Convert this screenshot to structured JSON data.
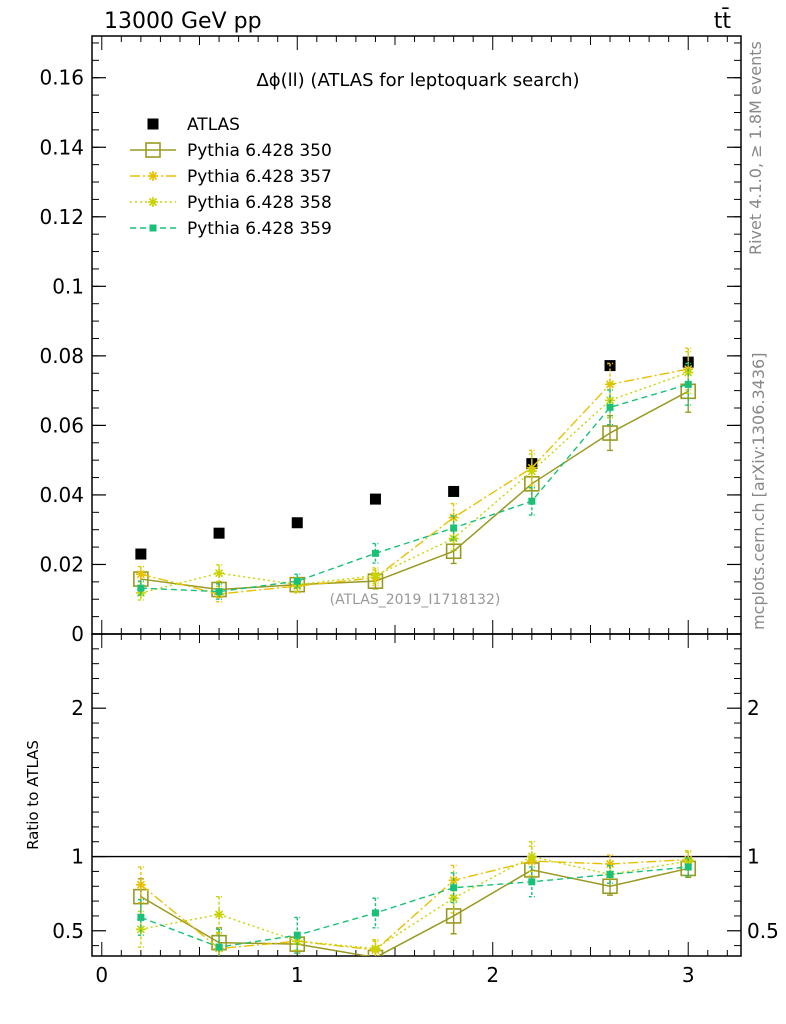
{
  "header": {
    "left": "13000 GeV pp",
    "right": "tt̄"
  },
  "side_text": {
    "rivet": "Rivet 4.1.0, ≥ 1.8M events",
    "mcplots": "mcplots.cern.ch [arXiv:1306.3436]"
  },
  "colors": {
    "atlas": "#000000",
    "p350": "#9a9a22",
    "p357": "#e8c000",
    "p358": "#c8d400",
    "p359": "#18c078"
  },
  "chart_data": [
    {
      "type": "scatter",
      "panel": "main",
      "title": "Δϕ(ll) (ATLAS for leptoquark search)",
      "watermark": "(ATLAS_2019_I1718132)",
      "xlim": [
        -0.05,
        3.27
      ],
      "ylim": [
        0,
        0.172
      ],
      "yticks": [
        0,
        0.02,
        0.04,
        0.06,
        0.08,
        0.1,
        0.12,
        0.14,
        0.16
      ],
      "ytick_labels": [
        "0",
        "0.02",
        "0.04",
        "0.06",
        "0.08",
        "0.1",
        "0.12",
        "0.14",
        "0.16"
      ],
      "x": [
        0.2,
        0.6,
        1.0,
        1.4,
        1.8,
        2.2,
        2.6,
        3.0
      ],
      "series": [
        {
          "name": "ATLAS",
          "style": "data",
          "values": [
            0.023,
            0.029,
            0.032,
            0.0388,
            0.041,
            0.049,
            0.0772,
            0.0782
          ],
          "errors": [
            0.0006,
            0.0006,
            0.0006,
            0.0007,
            0.0008,
            0.001,
            0.0012,
            0.0012
          ]
        },
        {
          "name": "Pythia 6.428 350",
          "style": "p350",
          "values": [
            0.0158,
            0.0128,
            0.0142,
            0.0152,
            0.0238,
            0.0432,
            0.0578,
            0.0698
          ],
          "errors": [
            0.002,
            0.0022,
            0.002,
            0.0022,
            0.0035,
            0.0045,
            0.005,
            0.006
          ]
        },
        {
          "name": "Pythia 6.428 357",
          "style": "p357",
          "values": [
            0.0172,
            0.0115,
            0.0138,
            0.0162,
            0.0335,
            0.0478,
            0.0718,
            0.0762
          ],
          "errors": [
            0.0022,
            0.0022,
            0.002,
            0.0022,
            0.004,
            0.005,
            0.006,
            0.006
          ]
        },
        {
          "name": "Pythia 6.428 358",
          "style": "p358",
          "values": [
            0.0118,
            0.0175,
            0.0142,
            0.0168,
            0.0275,
            0.0468,
            0.0672,
            0.0752
          ],
          "errors": [
            0.002,
            0.0024,
            0.002,
            0.0022,
            0.0035,
            0.005,
            0.005,
            0.006
          ]
        },
        {
          "name": "Pythia 6.428 359",
          "style": "p359",
          "values": [
            0.0132,
            0.0122,
            0.0152,
            0.0232,
            0.0305,
            0.0382,
            0.0652,
            0.0718
          ],
          "errors": [
            0.002,
            0.0022,
            0.002,
            0.0028,
            0.0035,
            0.004,
            0.005,
            0.006
          ]
        }
      ]
    },
    {
      "type": "line",
      "panel": "ratio",
      "ylabel": "Ratio to ATLAS",
      "xlim": [
        -0.05,
        3.27
      ],
      "ylim": [
        0.33,
        2.5
      ],
      "yticks": [
        0.5,
        1,
        2
      ],
      "ytick_labels": [
        "0.5",
        "1",
        "2"
      ],
      "xticks": [
        0,
        1,
        2,
        3
      ],
      "xtick_labels": [
        "0",
        "1",
        "2",
        "3"
      ],
      "x": [
        0.2,
        0.6,
        1.0,
        1.4,
        1.8,
        2.2,
        2.6,
        3.0
      ],
      "series": [
        {
          "name": "Pythia 6.428 350",
          "style": "p350",
          "values": [
            0.73,
            0.42,
            0.41,
            0.32,
            0.6,
            0.91,
            0.8,
            0.92
          ],
          "errors": [
            0.12,
            0.1,
            0.06,
            0.06,
            0.12,
            0.08,
            0.06,
            0.06
          ]
        },
        {
          "name": "Pythia 6.428 357",
          "style": "p357",
          "values": [
            0.81,
            0.38,
            0.43,
            0.37,
            0.84,
            0.97,
            0.95,
            0.98
          ],
          "errors": [
            0.12,
            0.1,
            0.06,
            0.06,
            0.1,
            0.1,
            0.06,
            0.06
          ]
        },
        {
          "name": "Pythia 6.428 358",
          "style": "p358",
          "values": [
            0.51,
            0.61,
            0.43,
            0.38,
            0.72,
            1.0,
            0.88,
            0.97
          ],
          "errors": [
            0.12,
            0.12,
            0.06,
            0.06,
            0.1,
            0.1,
            0.06,
            0.06
          ]
        },
        {
          "name": "Pythia 6.428 359",
          "style": "p359",
          "values": [
            0.59,
            0.39,
            0.47,
            0.62,
            0.79,
            0.83,
            0.88,
            0.93
          ],
          "errors": [
            0.12,
            0.12,
            0.12,
            0.1,
            0.1,
            0.1,
            0.06,
            0.06
          ]
        }
      ]
    }
  ]
}
